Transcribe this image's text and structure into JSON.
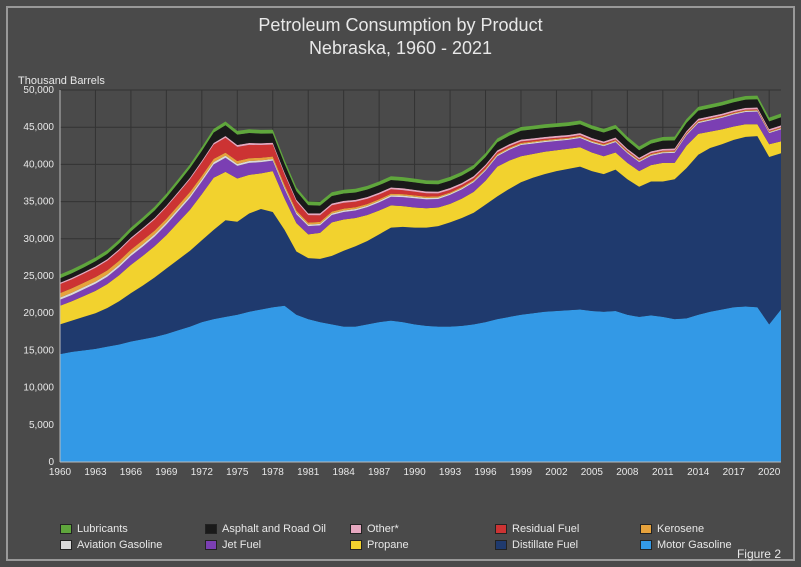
{
  "chart": {
    "type": "area-stacked",
    "title_line1": "Petroleum Consumption by Product",
    "title_line2": "Nebraska, 1960 - 2021",
    "title_fontsize": 18,
    "title_color": "#e8e8e8",
    "y_axis_title": "Thousand Barrels",
    "figure_label": "Figure 2",
    "background_color": "#4a4a4a",
    "border_color": "#999999",
    "grid_color": "#333333",
    "axis_text_color": "#e8e8e8",
    "ylim": [
      0,
      50000
    ],
    "ytick_step": 5000,
    "yticks": [
      0,
      5000,
      10000,
      15000,
      20000,
      25000,
      30000,
      35000,
      40000,
      45000,
      50000
    ],
    "xlim": [
      1960,
      2021
    ],
    "xticks": [
      1960,
      1963,
      1966,
      1969,
      1972,
      1975,
      1978,
      1981,
      1984,
      1987,
      1990,
      1993,
      1996,
      1999,
      2002,
      2005,
      2008,
      2011,
      2014,
      2017,
      2020
    ],
    "years": [
      1960,
      1961,
      1962,
      1963,
      1964,
      1965,
      1966,
      1967,
      1968,
      1969,
      1970,
      1971,
      1972,
      1973,
      1974,
      1975,
      1976,
      1977,
      1978,
      1979,
      1980,
      1981,
      1982,
      1983,
      1984,
      1985,
      1986,
      1987,
      1988,
      1989,
      1990,
      1991,
      1992,
      1993,
      1994,
      1995,
      1996,
      1997,
      1998,
      1999,
      2000,
      2001,
      2002,
      2003,
      2004,
      2005,
      2006,
      2007,
      2008,
      2009,
      2010,
      2011,
      2012,
      2013,
      2014,
      2015,
      2016,
      2017,
      2018,
      2019,
      2020,
      2021
    ],
    "series": [
      {
        "name": "Motor Gasoline",
        "color": "#3399e6",
        "values": [
          14500,
          14800,
          15000,
          15200,
          15500,
          15800,
          16200,
          16500,
          16800,
          17200,
          17700,
          18200,
          18800,
          19200,
          19500,
          19800,
          20200,
          20500,
          20800,
          21000,
          19800,
          19200,
          18800,
          18500,
          18200,
          18200,
          18500,
          18800,
          19000,
          18800,
          18500,
          18300,
          18200,
          18200,
          18300,
          18500,
          18800,
          19200,
          19500,
          19800,
          20000,
          20200,
          20300,
          20400,
          20500,
          20300,
          20200,
          20300,
          19800,
          19500,
          19700,
          19500,
          19200,
          19300,
          19800,
          20200,
          20500,
          20800,
          20900,
          20800,
          18500,
          20500
        ]
      },
      {
        "name": "Distillate Fuel",
        "color": "#1f3a6e",
        "values": [
          4000,
          4200,
          4500,
          4800,
          5200,
          5800,
          6500,
          7200,
          8000,
          8800,
          9500,
          10200,
          11000,
          12000,
          13000,
          12500,
          13200,
          13500,
          12800,
          10200,
          8500,
          8200,
          8500,
          9200,
          10200,
          10800,
          11200,
          11800,
          12500,
          12800,
          13000,
          13200,
          13500,
          14000,
          14500,
          15000,
          15800,
          16500,
          17200,
          17800,
          18200,
          18500,
          18800,
          19000,
          19200,
          18800,
          18500,
          19000,
          18200,
          17500,
          18000,
          18200,
          18800,
          20200,
          21500,
          22000,
          22200,
          22500,
          22800,
          23000,
          22500,
          21000
        ]
      },
      {
        "name": "Propane",
        "color": "#f2d22e",
        "values": [
          2500,
          2600,
          2800,
          3000,
          3200,
          3500,
          3800,
          4000,
          4200,
          4500,
          5000,
          5500,
          6200,
          7000,
          6500,
          5800,
          5200,
          4800,
          5500,
          4200,
          3800,
          3200,
          3500,
          4500,
          4200,
          3800,
          3500,
          3200,
          3000,
          2800,
          2700,
          2600,
          2500,
          2500,
          2600,
          2800,
          3200,
          4000,
          3800,
          3500,
          3200,
          3000,
          2800,
          2700,
          2600,
          2500,
          2400,
          2300,
          2200,
          2100,
          2200,
          2500,
          2200,
          3000,
          2800,
          2200,
          2000,
          1800,
          1700,
          1600,
          1700,
          1600
        ]
      },
      {
        "name": "Jet Fuel",
        "color": "#7b3fb3",
        "values": [
          800,
          850,
          900,
          950,
          1000,
          1100,
          1200,
          1250,
          1300,
          1400,
          1500,
          1600,
          1700,
          1800,
          1900,
          1700,
          1600,
          1500,
          1400,
          1300,
          1200,
          1100,
          1000,
          1000,
          1000,
          1000,
          1050,
          1100,
          1150,
          1200,
          1250,
          1200,
          1150,
          1200,
          1250,
          1300,
          1350,
          1400,
          1450,
          1500,
          1400,
          1300,
          1250,
          1200,
          1250,
          1300,
          1350,
          1400,
          1300,
          1200,
          1250,
          1300,
          1350,
          1400,
          1450,
          1500,
          1550,
          1600,
          1650,
          1700,
          1500,
          1600
        ]
      },
      {
        "name": "Aviation Gasoline",
        "color": "#d9d9d9",
        "values": [
          300,
          300,
          300,
          300,
          300,
          300,
          300,
          300,
          300,
          300,
          300,
          300,
          300,
          300,
          280,
          260,
          250,
          240,
          230,
          220,
          210,
          200,
          200,
          200,
          200,
          200,
          200,
          200,
          200,
          200,
          200,
          190,
          180,
          170,
          160,
          150,
          150,
          150,
          150,
          150,
          140,
          140,
          140,
          140,
          140,
          140,
          130,
          130,
          130,
          130,
          130,
          130,
          130,
          130,
          130,
          130,
          120,
          120,
          120,
          120,
          120,
          120
        ]
      },
      {
        "name": "Kerosene",
        "color": "#e6a23c",
        "values": [
          600,
          600,
          600,
          600,
          550,
          550,
          550,
          550,
          500,
          500,
          500,
          500,
          450,
          450,
          400,
          400,
          380,
          360,
          340,
          320,
          300,
          280,
          270,
          260,
          250,
          240,
          230,
          220,
          210,
          200,
          190,
          180,
          170,
          160,
          150,
          150,
          150,
          150,
          140,
          140,
          140,
          140,
          140,
          130,
          130,
          130,
          130,
          120,
          120,
          120,
          120,
          120,
          110,
          110,
          110,
          110,
          110,
          110,
          100,
          100,
          100,
          100
        ]
      },
      {
        "name": "Residual Fuel",
        "color": "#cc3333",
        "values": [
          1200,
          1200,
          1200,
          1250,
          1300,
          1350,
          1400,
          1450,
          1500,
          1550,
          1600,
          1700,
          1800,
          1900,
          2000,
          1900,
          1800,
          1700,
          1600,
          1400,
          1200,
          1000,
          900,
          850,
          800,
          750,
          700,
          650,
          600,
          550,
          500,
          450,
          400,
          350,
          300,
          280,
          260,
          240,
          220,
          200,
          180,
          170,
          160,
          150,
          140,
          130,
          130,
          120,
          120,
          110,
          110,
          100,
          100,
          100,
          100,
          90,
          90,
          90,
          90,
          90,
          80,
          80
        ]
      },
      {
        "name": "Other*",
        "color": "#e6a8c0",
        "values": [
          200,
          200,
          200,
          200,
          200,
          200,
          200,
          200,
          200,
          200,
          200,
          210,
          220,
          230,
          240,
          240,
          240,
          240,
          240,
          240,
          240,
          240,
          240,
          240,
          240,
          240,
          240,
          240,
          240,
          240,
          240,
          240,
          240,
          240,
          240,
          240,
          240,
          240,
          240,
          240,
          240,
          240,
          240,
          240,
          240,
          240,
          240,
          240,
          240,
          240,
          240,
          240,
          240,
          240,
          240,
          240,
          240,
          240,
          240,
          240,
          240,
          240
        ]
      },
      {
        "name": "Asphalt and Road Oil",
        "color": "#1a1a1a",
        "values": [
          600,
          620,
          640,
          680,
          720,
          780,
          850,
          920,
          1000,
          1100,
          1200,
          1300,
          1350,
          1400,
          1450,
          1400,
          1350,
          1300,
          1250,
          1200,
          1150,
          1100,
          1050,
          1000,
          1000,
          1000,
          1000,
          1000,
          1000,
          1000,
          1000,
          1000,
          1000,
          1000,
          1000,
          1000,
          1050,
          1100,
          1150,
          1200,
          1200,
          1200,
          1200,
          1200,
          1200,
          1200,
          1200,
          1200,
          1100,
          1000,
          1050,
          1100,
          1100,
          1100,
          1100,
          1100,
          1100,
          1100,
          1100,
          1100,
          1050,
          1100
        ]
      },
      {
        "name": "Lubricants",
        "color": "#5fa63c",
        "values": [
          500,
          500,
          500,
          500,
          500,
          500,
          500,
          500,
          500,
          500,
          500,
          500,
          500,
          500,
          500,
          500,
          500,
          500,
          500,
          500,
          500,
          500,
          500,
          500,
          500,
          500,
          500,
          500,
          500,
          500,
          500,
          500,
          500,
          500,
          500,
          500,
          500,
          500,
          500,
          500,
          500,
          500,
          500,
          500,
          500,
          500,
          500,
          500,
          500,
          500,
          500,
          500,
          500,
          500,
          500,
          500,
          500,
          500,
          500,
          500,
          500,
          500
        ]
      }
    ],
    "legend_order": [
      "Lubricants",
      "Asphalt and Road Oil",
      "Other*",
      "Residual Fuel",
      "Kerosene",
      "Aviation Gasoline",
      "Jet Fuel",
      "Propane",
      "Distillate Fuel",
      "Motor Gasoline"
    ],
    "legend_swatch_border": "#222222",
    "label_fontsize": 11
  }
}
